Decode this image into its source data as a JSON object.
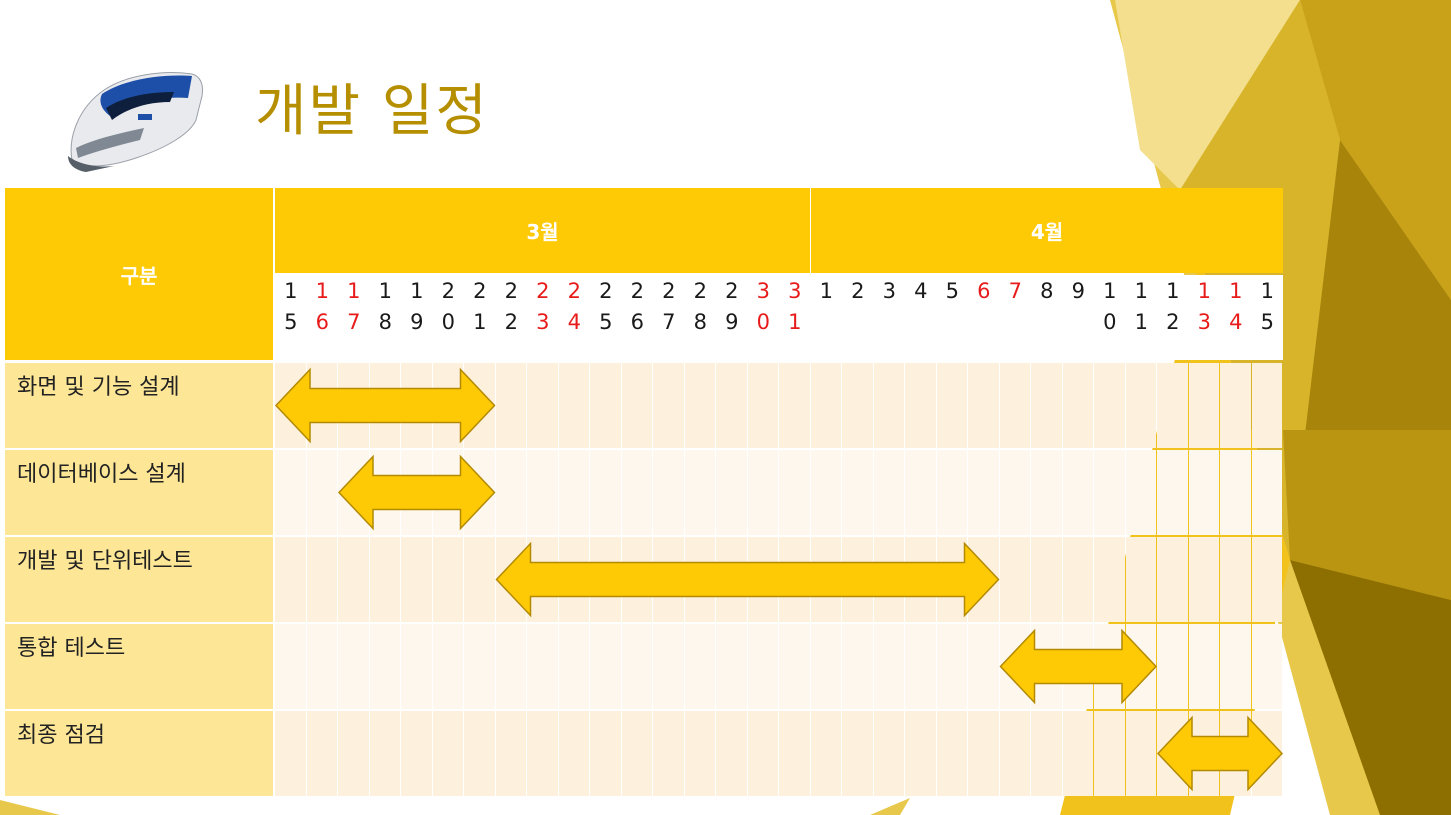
{
  "slide": {
    "title": "개발 일정"
  },
  "icons": {
    "train": "ktx-train-icon"
  },
  "colors": {
    "header": "#fec905",
    "label_bg": "#fde797",
    "row_a": "#fdf0dd",
    "row_b": "#fef7ee",
    "arrow_fill": "#fec905",
    "arrow_stroke": "#b48a00",
    "weekend_red": "#e81b1b",
    "title": "#b58f00"
  },
  "table": {
    "category_header": "구분",
    "months": [
      {
        "label": "3월"
      },
      {
        "label": "4월"
      }
    ],
    "days": [
      {
        "top": "1",
        "bottom": "5",
        "red": false
      },
      {
        "top": "1",
        "bottom": "6",
        "red": true
      },
      {
        "top": "1",
        "bottom": "7",
        "red": true
      },
      {
        "top": "1",
        "bottom": "8",
        "red": false
      },
      {
        "top": "1",
        "bottom": "9",
        "red": false
      },
      {
        "top": "2",
        "bottom": "0",
        "red": false
      },
      {
        "top": "2",
        "bottom": "1",
        "red": false
      },
      {
        "top": "2",
        "bottom": "2",
        "red": false
      },
      {
        "top": "2",
        "bottom": "3",
        "red": true
      },
      {
        "top": "2",
        "bottom": "4",
        "red": true
      },
      {
        "top": "2",
        "bottom": "5",
        "red": false
      },
      {
        "top": "2",
        "bottom": "6",
        "red": false
      },
      {
        "top": "2",
        "bottom": "7",
        "red": false
      },
      {
        "top": "2",
        "bottom": "8",
        "red": false
      },
      {
        "top": "2",
        "bottom": "9",
        "red": false
      },
      {
        "top": "3",
        "bottom": "0",
        "red": true
      },
      {
        "top": "3",
        "bottom": "1",
        "red": true
      },
      {
        "top": "1",
        "bottom": "",
        "red": false
      },
      {
        "top": "2",
        "bottom": "",
        "red": false
      },
      {
        "top": "3",
        "bottom": "",
        "red": false
      },
      {
        "top": "4",
        "bottom": "",
        "red": false
      },
      {
        "top": "5",
        "bottom": "",
        "red": false
      },
      {
        "top": "6",
        "bottom": "",
        "red": true
      },
      {
        "top": "7",
        "bottom": "",
        "red": true
      },
      {
        "top": "8",
        "bottom": "",
        "red": false
      },
      {
        "top": "9",
        "bottom": "",
        "red": false
      },
      {
        "top": "1",
        "bottom": "0",
        "red": false
      },
      {
        "top": "1",
        "bottom": "1",
        "red": false
      },
      {
        "top": "1",
        "bottom": "2",
        "red": false
      },
      {
        "top": "1",
        "bottom": "3",
        "red": true
      },
      {
        "top": "1",
        "bottom": "4",
        "red": true
      },
      {
        "top": "1",
        "bottom": "5",
        "red": false
      }
    ],
    "tasks": [
      {
        "label": "화면 및 기능 설계",
        "start": "3/15",
        "end": "3/21"
      },
      {
        "label": "데이터베이스 설계",
        "start": "3/17",
        "end": "3/21"
      },
      {
        "label": "개발 및 단위테스트",
        "start": "3/22",
        "end": "4/6"
      },
      {
        "label": "통합 테스트",
        "start": "4/7",
        "end": "4/11"
      },
      {
        "label": "최종 점검",
        "start": "4/12",
        "end": "4/15"
      }
    ]
  }
}
